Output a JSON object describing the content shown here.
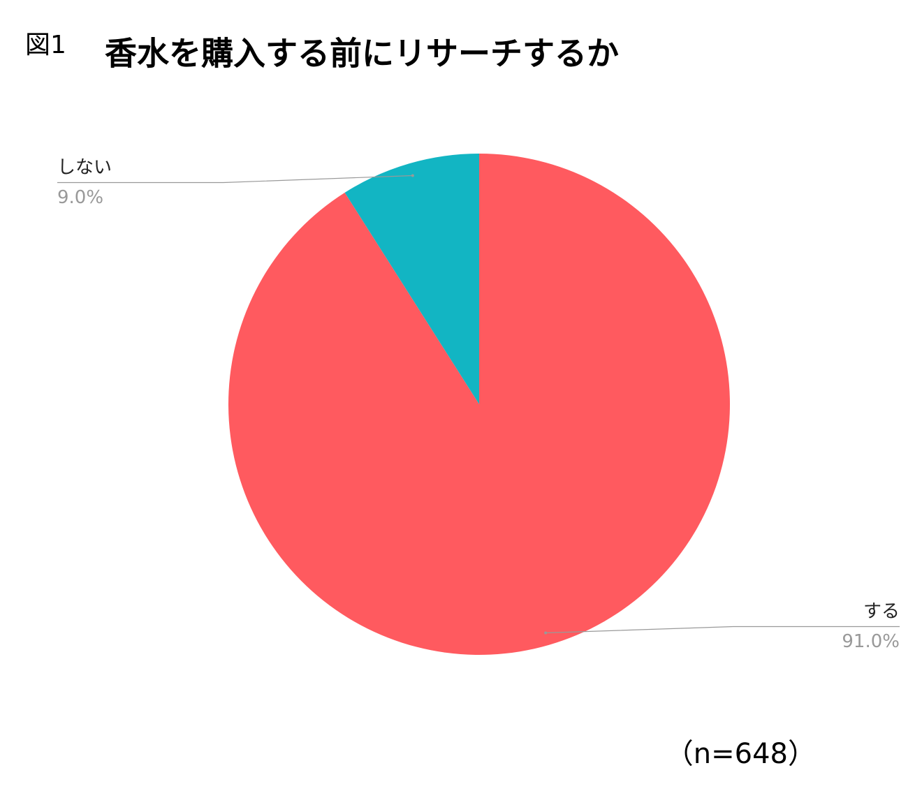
{
  "chart_data": {
    "type": "pie",
    "figure_label": "図1",
    "title": "香水を購入する前にリサーチするか",
    "note": "（n=648）",
    "categories": [
      "する",
      "しない"
    ],
    "values": [
      91.0,
      9.0
    ],
    "value_labels": [
      "91.0%",
      "9.0%"
    ],
    "colors": [
      "#ff5a5f",
      "#12b5c3"
    ]
  }
}
